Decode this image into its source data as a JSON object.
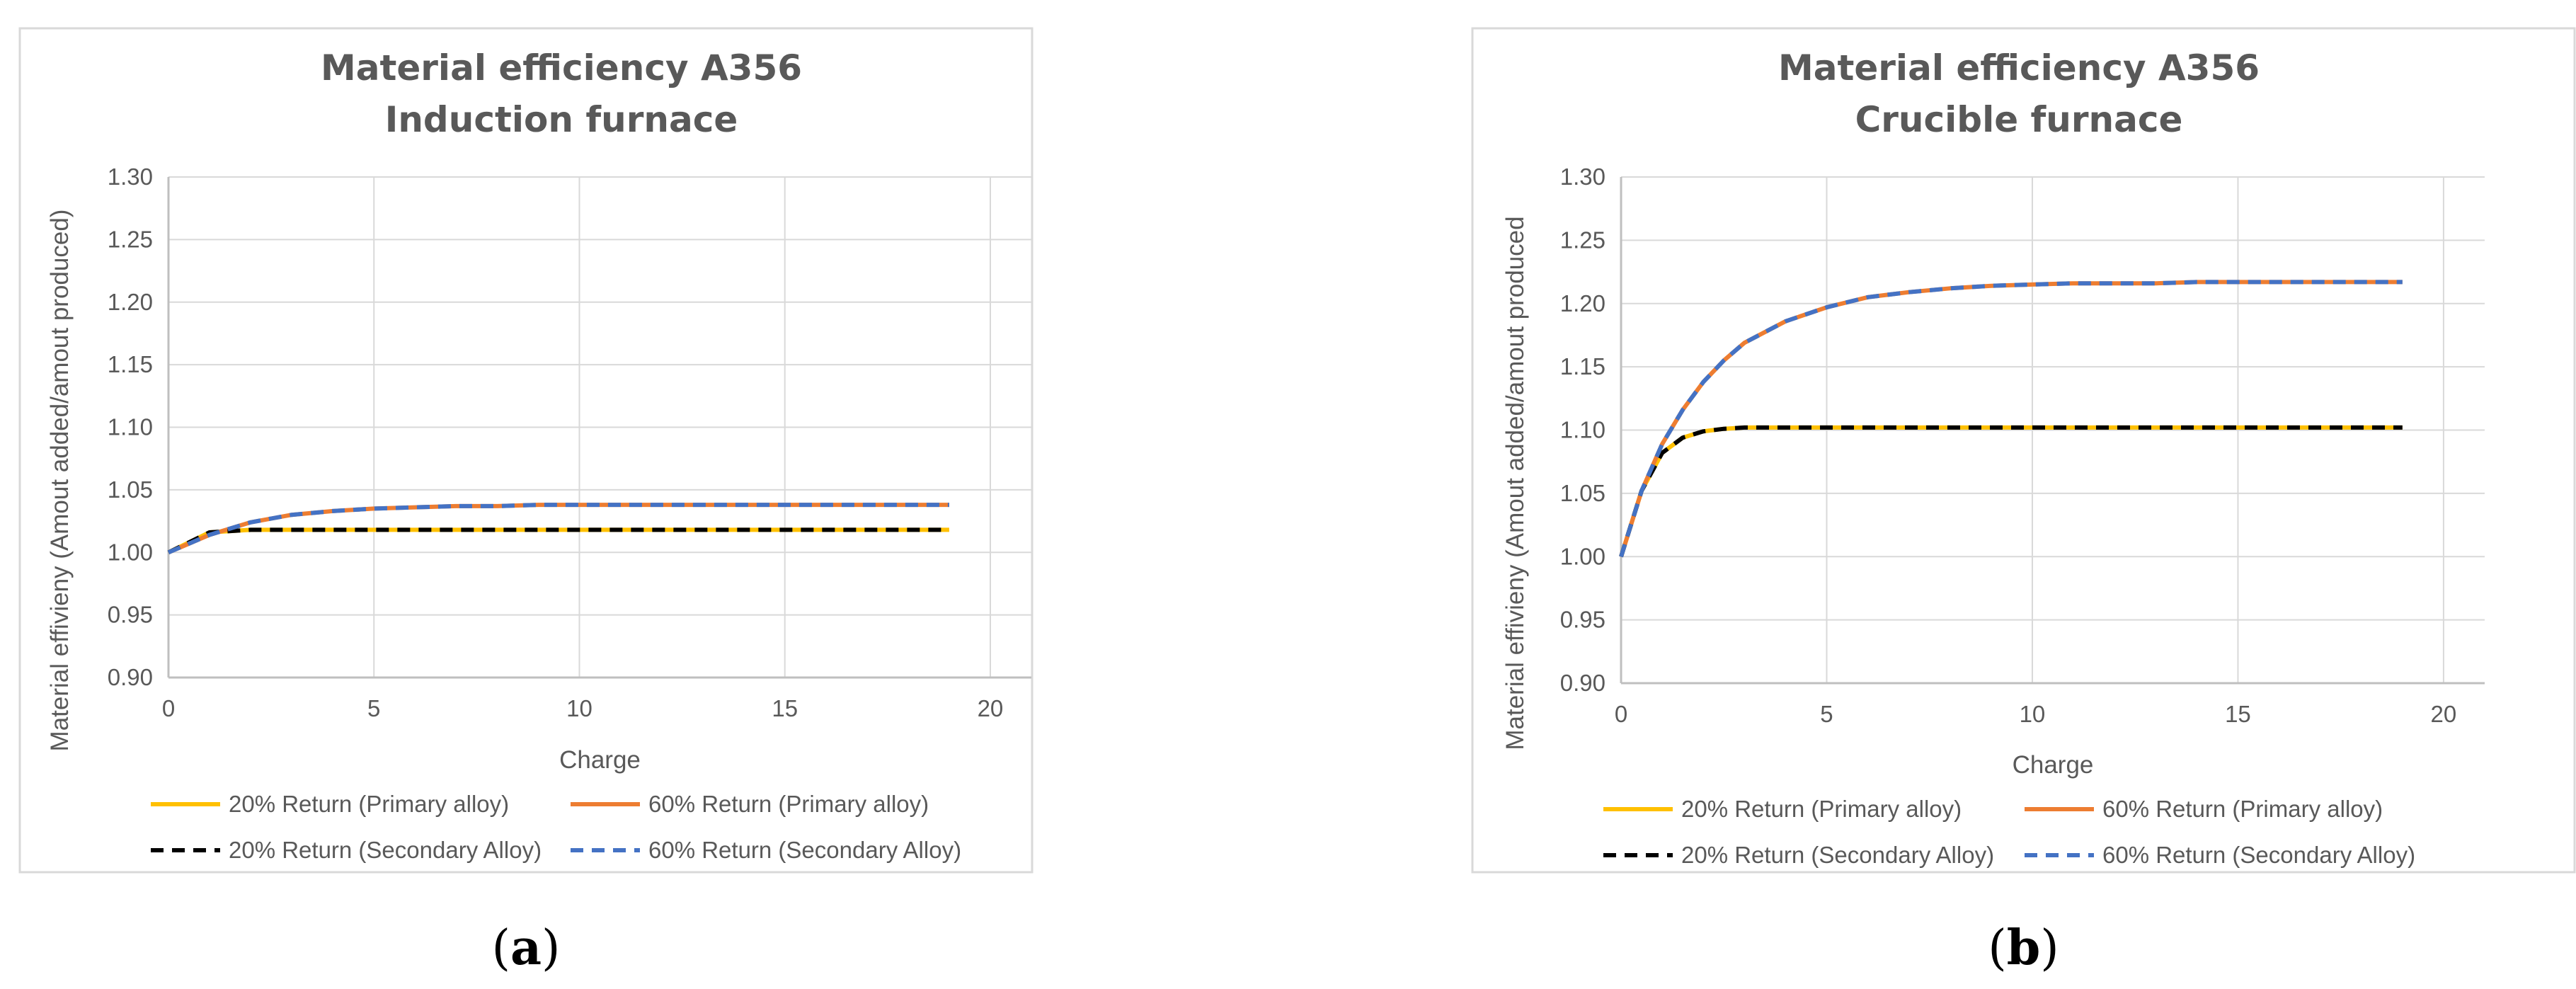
{
  "captions": [
    "a",
    "b"
  ],
  "chart_data": [
    {
      "type": "line",
      "title": [
        "Material efficiency A356",
        "Induction furnace"
      ],
      "xlabel": "Charge",
      "ylabel": "Material effivieny (Amout added/amout produced)",
      "xlim": [
        0,
        21
      ],
      "ylim": [
        0.9,
        1.3
      ],
      "xticks": [
        "0",
        "5",
        "10",
        "15",
        "20"
      ],
      "yticks": [
        "0.90",
        "0.95",
        "1.00",
        "1.05",
        "1.10",
        "1.15",
        "1.20",
        "1.25",
        "1.30"
      ],
      "grid": true,
      "legend_position": "bottom",
      "colors": {
        "primary20": "#FFC000",
        "primary60": "#ED7D31",
        "secondary20": "#000000",
        "secondary60": "#4472C4"
      },
      "series": [
        {
          "name": "20% Return (Primary alloy)",
          "style": "solid",
          "color": "#FFC000",
          "x": [
            0,
            1,
            2,
            3,
            4,
            5,
            6,
            7,
            8,
            9,
            10,
            11,
            12,
            13,
            14,
            15,
            16,
            17,
            18,
            19
          ],
          "values": [
            1.0,
            1.016,
            1.018,
            1.018,
            1.018,
            1.018,
            1.018,
            1.018,
            1.018,
            1.018,
            1.018,
            1.018,
            1.018,
            1.018,
            1.018,
            1.018,
            1.018,
            1.018,
            1.018,
            1.018
          ]
        },
        {
          "name": "60% Return (Primary alloy)",
          "style": "solid",
          "color": "#ED7D31",
          "x": [
            0,
            1,
            2,
            3,
            4,
            5,
            6,
            7,
            8,
            9,
            10,
            11,
            12,
            13,
            14,
            15,
            16,
            17,
            18,
            19
          ],
          "values": [
            1.0,
            1.014,
            1.024,
            1.03,
            1.033,
            1.035,
            1.036,
            1.037,
            1.037,
            1.038,
            1.038,
            1.038,
            1.038,
            1.038,
            1.038,
            1.038,
            1.038,
            1.038,
            1.038,
            1.038
          ]
        },
        {
          "name": "20% Return (Secondary Alloy)",
          "style": "dashed",
          "color": "#000000",
          "x": [
            0,
            1,
            2,
            3,
            4,
            5,
            6,
            7,
            8,
            9,
            10,
            11,
            12,
            13,
            14,
            15,
            16,
            17,
            18,
            19
          ],
          "values": [
            1.0,
            1.016,
            1.018,
            1.018,
            1.018,
            1.018,
            1.018,
            1.018,
            1.018,
            1.018,
            1.018,
            1.018,
            1.018,
            1.018,
            1.018,
            1.018,
            1.018,
            1.018,
            1.018,
            1.018
          ]
        },
        {
          "name": "60% Return (Secondary Alloy)",
          "style": "dashed",
          "color": "#4472C4",
          "x": [
            0,
            1,
            2,
            3,
            4,
            5,
            6,
            7,
            8,
            9,
            10,
            11,
            12,
            13,
            14,
            15,
            16,
            17,
            18,
            19
          ],
          "values": [
            1.0,
            1.014,
            1.024,
            1.03,
            1.033,
            1.035,
            1.036,
            1.037,
            1.037,
            1.038,
            1.038,
            1.038,
            1.038,
            1.038,
            1.038,
            1.038,
            1.038,
            1.038,
            1.038,
            1.038
          ]
        }
      ]
    },
    {
      "type": "line",
      "title": [
        "Material efficiency A356",
        "Crucible furnace"
      ],
      "xlabel": "Charge",
      "ylabel": "Material effivieny (Amout added/amout produced",
      "xlim": [
        0,
        21
      ],
      "ylim": [
        0.9,
        1.3
      ],
      "xticks": [
        "0",
        "5",
        "10",
        "15",
        "20"
      ],
      "yticks": [
        "0.90",
        "0.95",
        "1.00",
        "1.05",
        "1.10",
        "1.15",
        "1.20",
        "1.25",
        "1.30"
      ],
      "grid": true,
      "legend_position": "bottom",
      "colors": {
        "primary20": "#FFC000",
        "primary60": "#ED7D31",
        "secondary20": "#000000",
        "secondary60": "#4472C4"
      },
      "series": [
        {
          "name": "20% Return (Primary alloy)",
          "style": "solid",
          "color": "#FFC000",
          "x": [
            0,
            0.5,
            1,
            1.5,
            2,
            2.5,
            3,
            4,
            5,
            6,
            7,
            8,
            9,
            10,
            11,
            12,
            13,
            14,
            15,
            16,
            17,
            18,
            19
          ],
          "values": [
            1.0,
            1.052,
            1.082,
            1.094,
            1.099,
            1.101,
            1.102,
            1.102,
            1.102,
            1.102,
            1.102,
            1.102,
            1.102,
            1.102,
            1.102,
            1.102,
            1.102,
            1.102,
            1.102,
            1.102,
            1.102,
            1.102,
            1.102
          ]
        },
        {
          "name": "60% Return (Primary alloy)",
          "style": "solid",
          "color": "#ED7D31",
          "x": [
            0,
            0.5,
            1,
            1.5,
            2,
            2.5,
            3,
            4,
            5,
            6,
            7,
            8,
            9,
            10,
            11,
            12,
            13,
            14,
            15,
            16,
            17,
            18,
            19
          ],
          "values": [
            1.0,
            1.052,
            1.089,
            1.116,
            1.138,
            1.155,
            1.169,
            1.186,
            1.197,
            1.205,
            1.209,
            1.212,
            1.214,
            1.215,
            1.216,
            1.216,
            1.216,
            1.217,
            1.217,
            1.217,
            1.217,
            1.217,
            1.217
          ]
        },
        {
          "name": "20% Return (Secondary Alloy)",
          "style": "dashed",
          "color": "#000000",
          "x": [
            0,
            0.5,
            1,
            1.5,
            2,
            2.5,
            3,
            4,
            5,
            6,
            7,
            8,
            9,
            10,
            11,
            12,
            13,
            14,
            15,
            16,
            17,
            18,
            19
          ],
          "values": [
            1.0,
            1.052,
            1.082,
            1.094,
            1.099,
            1.101,
            1.102,
            1.102,
            1.102,
            1.102,
            1.102,
            1.102,
            1.102,
            1.102,
            1.102,
            1.102,
            1.102,
            1.102,
            1.102,
            1.102,
            1.102,
            1.102,
            1.102
          ]
        },
        {
          "name": "60% Return (Secondary Alloy)",
          "style": "dashed",
          "color": "#4472C4",
          "x": [
            0,
            0.5,
            1,
            1.5,
            2,
            2.5,
            3,
            4,
            5,
            6,
            7,
            8,
            9,
            10,
            11,
            12,
            13,
            14,
            15,
            16,
            17,
            18,
            19
          ],
          "values": [
            1.0,
            1.052,
            1.089,
            1.116,
            1.138,
            1.155,
            1.169,
            1.186,
            1.197,
            1.205,
            1.209,
            1.212,
            1.214,
            1.215,
            1.216,
            1.216,
            1.216,
            1.217,
            1.217,
            1.217,
            1.217,
            1.217,
            1.217
          ]
        }
      ]
    }
  ]
}
